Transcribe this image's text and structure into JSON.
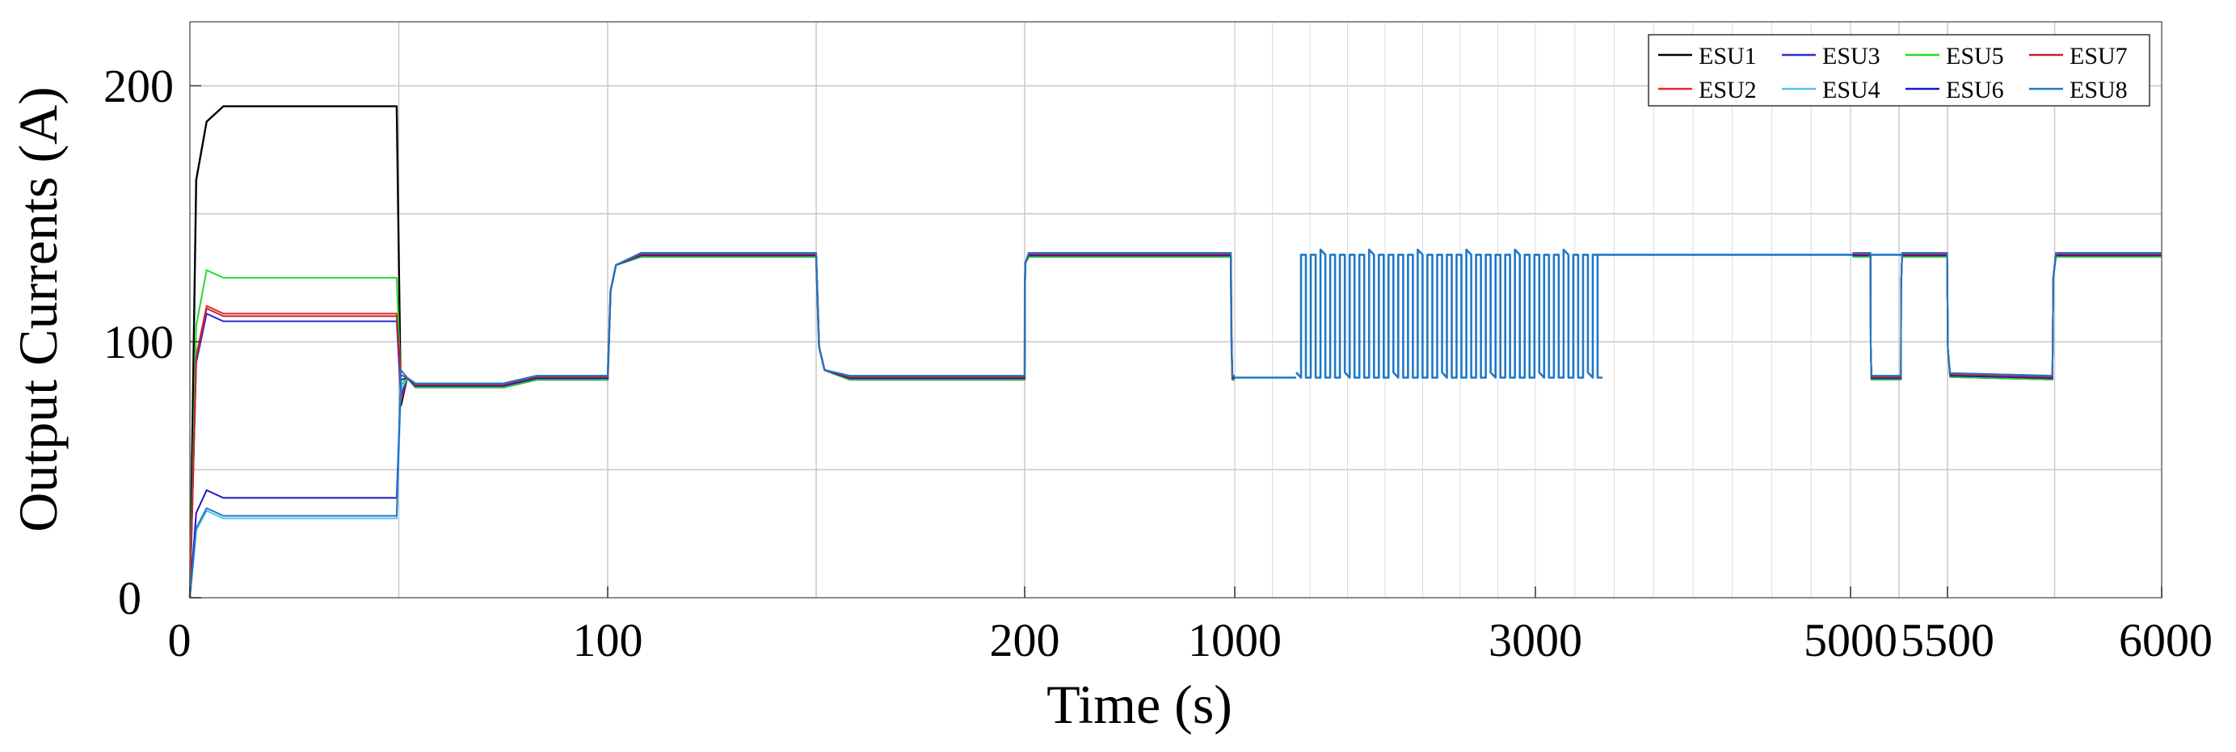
{
  "chart_data": {
    "type": "line",
    "title": "",
    "xlabel": "Time (s)",
    "ylabel": "Output Currents (A)",
    "ylim": [
      0,
      225
    ],
    "y_ticks": [
      0,
      100,
      200
    ],
    "y_tick_labels": [
      "0",
      "100",
      "200"
    ],
    "x_tick_labels": [
      "0",
      "100",
      "200",
      "1000",
      "3000",
      "5000",
      "5500",
      "6000"
    ],
    "x_axis_note": "piecewise / broken time axis: segments 0-100, 100-200 (each split at a minor mid gridline), 200-1000, 1000-3000, 3000-5000 (dense switching region), 5000-5500 (split at mid), 5500-6000 (split at mid)",
    "grid": true,
    "legend": {
      "placement": "top-right",
      "columns": 4,
      "entries": [
        "ESU1",
        "ESU2",
        "ESU3",
        "ESU4",
        "ESU5",
        "ESU6",
        "ESU7",
        "ESU8"
      ]
    },
    "colors": {
      "ESU1": "#000000",
      "ESU2": "#e8262a",
      "ESU3": "#2b2bd8",
      "ESU4": "#52c6e8",
      "ESU5": "#27d927",
      "ESU6": "#1a16c2",
      "ESU7": "#c2232d",
      "ESU8": "#1f78c8"
    },
    "series": [
      {
        "name": "ESU1",
        "initial_steady_value": 192
      },
      {
        "name": "ESU2",
        "initial_steady_value": 111
      },
      {
        "name": "ESU3",
        "initial_steady_value": 108
      },
      {
        "name": "ESU4",
        "initial_steady_value": 31
      },
      {
        "name": "ESU5",
        "initial_steady_value": 125
      },
      {
        "name": "ESU6",
        "initial_steady_value": 39
      },
      {
        "name": "ESU7",
        "initial_steady_value": 110
      },
      {
        "name": "ESU8",
        "initial_steady_value": 32
      }
    ],
    "shared_levels": {
      "initial_step_end_time": 50,
      "after_step_low": 83,
      "middle_low": 86,
      "high": 134,
      "low": 86
    },
    "phases": [
      {
        "from": 50,
        "to": 100,
        "level": "~83 rising to ~86"
      },
      {
        "from": 100,
        "to": 150,
        "level": 134
      },
      {
        "from": 150,
        "to": 200,
        "level": 86
      },
      {
        "from": 200,
        "to": 1000,
        "level": 134,
        "switch_down_near": 1000
      },
      {
        "from": 1000,
        "to": 5000,
        "level": "rapid switching between 86 and 134"
      },
      {
        "from": 5000,
        "to": 5250,
        "level": 134
      },
      {
        "from": 5250,
        "to": 5500,
        "level": 86
      },
      {
        "from": 5500,
        "to": 5750,
        "level": 134
      },
      {
        "from": 5750,
        "to": 6000,
        "level": "86 then 134"
      }
    ]
  }
}
